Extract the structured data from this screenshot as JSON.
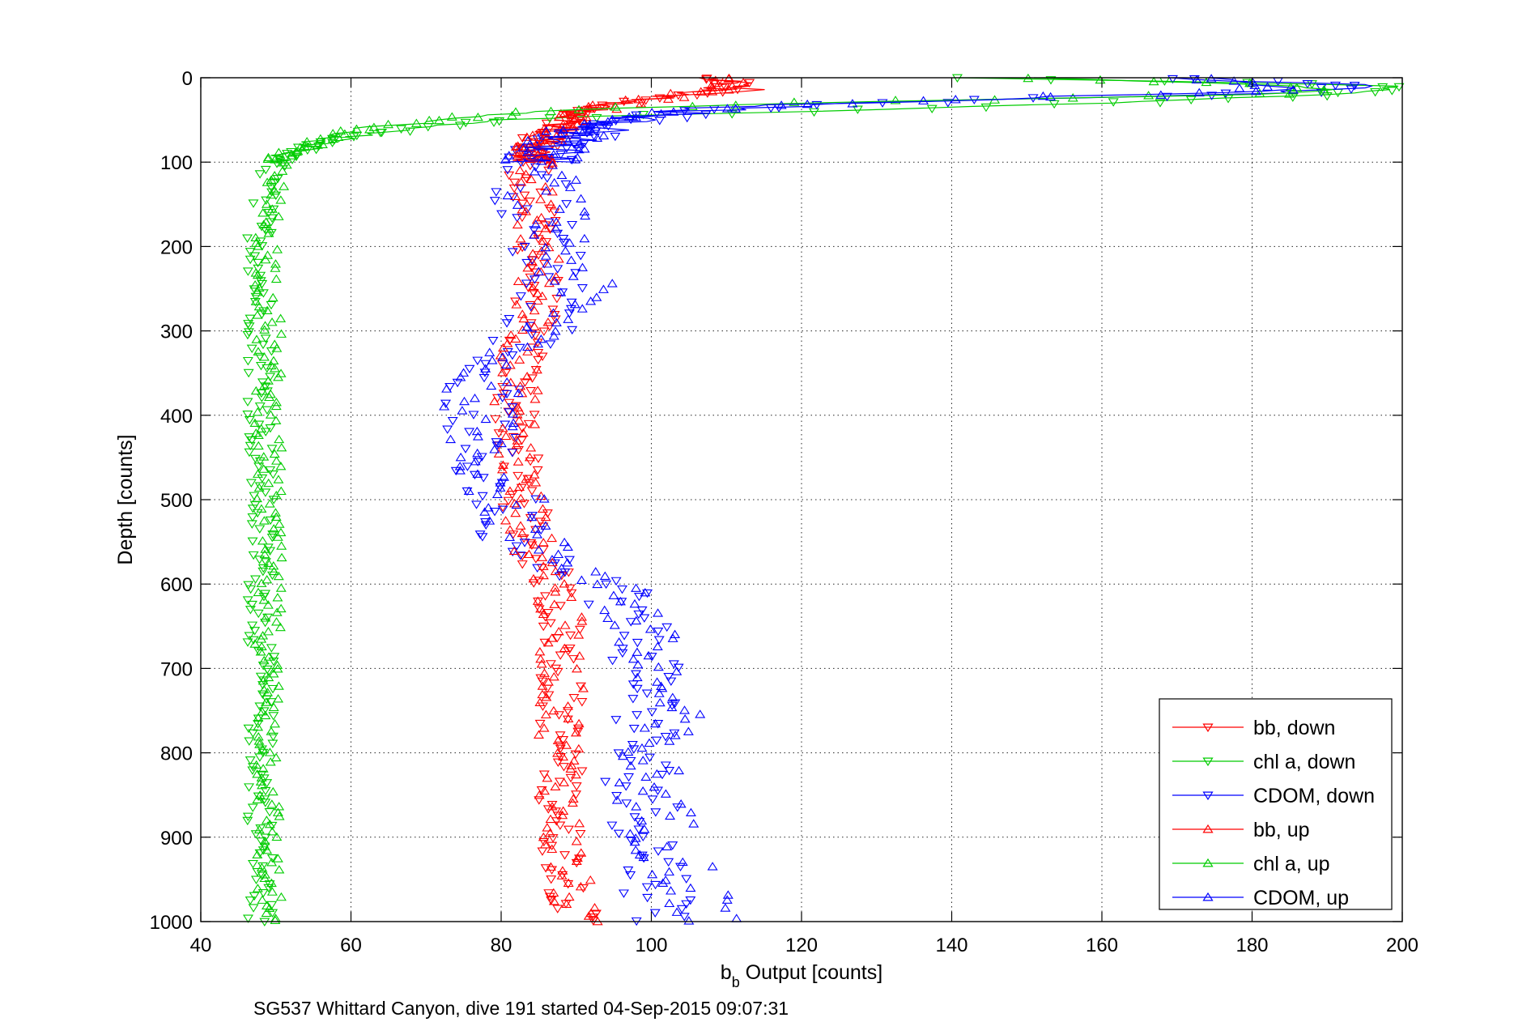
{
  "chart_data": {
    "type": "scatter",
    "title": "",
    "xlabel_main": "b",
    "xlabel_sub": "b",
    "xlabel_rest": " Output [counts]",
    "ylabel": "Depth [counts]",
    "caption": "SG537 Whittard Canyon, dive 191 started 04-Sep-2015 09:07:31",
    "xlim": [
      40,
      200
    ],
    "ylim": [
      0,
      1000
    ],
    "y_reversed": true,
    "x_ticks": [
      40,
      60,
      80,
      100,
      120,
      140,
      160,
      180,
      200
    ],
    "y_ticks": [
      0,
      100,
      200,
      300,
      400,
      500,
      600,
      700,
      800,
      900,
      1000
    ],
    "grid": true,
    "legend_position": "bottom-right",
    "series": [
      {
        "name": "bb, down",
        "color": "#ff0000",
        "marker": "triangle-down",
        "profile": [
          [
            0,
            108
          ],
          [
            5,
            110
          ],
          [
            10,
            112
          ],
          [
            15,
            113
          ],
          [
            20,
            104
          ],
          [
            25,
            100
          ],
          [
            30,
            96
          ],
          [
            35,
            92
          ],
          [
            40,
            90
          ],
          [
            50,
            88
          ],
          [
            60,
            87
          ],
          [
            70,
            86
          ],
          [
            80,
            85
          ],
          [
            90,
            84
          ],
          [
            100,
            84
          ],
          [
            150,
            84
          ],
          [
            200,
            85
          ],
          [
            250,
            85
          ],
          [
            300,
            84
          ],
          [
            350,
            82
          ],
          [
            400,
            82
          ],
          [
            450,
            82
          ],
          [
            500,
            83
          ],
          [
            550,
            84
          ],
          [
            600,
            87
          ],
          [
            650,
            88
          ],
          [
            700,
            88
          ],
          [
            750,
            88
          ],
          [
            800,
            88
          ],
          [
            850,
            88
          ],
          [
            900,
            88
          ],
          [
            950,
            89
          ],
          [
            1000,
            90
          ]
        ]
      },
      {
        "name": "chl a, down",
        "color": "#00cc00",
        "marker": "triangle-down",
        "profile": [
          [
            0,
            140
          ],
          [
            5,
            175
          ],
          [
            10,
            198
          ],
          [
            15,
            198
          ],
          [
            20,
            190
          ],
          [
            25,
            175
          ],
          [
            30,
            160
          ],
          [
            35,
            140
          ],
          [
            40,
            120
          ],
          [
            45,
            95
          ],
          [
            50,
            80
          ],
          [
            60,
            68
          ],
          [
            70,
            60
          ],
          [
            80,
            55
          ],
          [
            90,
            52
          ],
          [
            100,
            50
          ],
          [
            150,
            48
          ],
          [
            200,
            48
          ],
          [
            250,
            48
          ],
          [
            300,
            48
          ],
          [
            350,
            48
          ],
          [
            400,
            48
          ],
          [
            450,
            48
          ],
          [
            500,
            48
          ],
          [
            550,
            48
          ],
          [
            600,
            48
          ],
          [
            650,
            48
          ],
          [
            700,
            48
          ],
          [
            750,
            48
          ],
          [
            800,
            48
          ],
          [
            850,
            48
          ],
          [
            900,
            48
          ],
          [
            950,
            48
          ],
          [
            1000,
            48
          ]
        ]
      },
      {
        "name": "CDOM, down",
        "color": "#0000ff",
        "marker": "triangle-down",
        "profile": [
          [
            0,
            165
          ],
          [
            5,
            185
          ],
          [
            10,
            195
          ],
          [
            15,
            190
          ],
          [
            20,
            175
          ],
          [
            25,
            150
          ],
          [
            30,
            130
          ],
          [
            35,
            115
          ],
          [
            40,
            105
          ],
          [
            50,
            98
          ],
          [
            60,
            93
          ],
          [
            70,
            90
          ],
          [
            80,
            88
          ],
          [
            90,
            86
          ],
          [
            100,
            85
          ],
          [
            150,
            84
          ],
          [
            200,
            86
          ],
          [
            250,
            88
          ],
          [
            300,
            85
          ],
          [
            350,
            78
          ],
          [
            400,
            77
          ],
          [
            450,
            77
          ],
          [
            500,
            80
          ],
          [
            550,
            82
          ],
          [
            600,
            95
          ],
          [
            650,
            98
          ],
          [
            700,
            100
          ],
          [
            750,
            100
          ],
          [
            800,
            98
          ],
          [
            850,
            99
          ],
          [
            900,
            100
          ],
          [
            950,
            101
          ],
          [
            1000,
            102
          ]
        ]
      },
      {
        "name": "bb, up",
        "color": "#ff0000",
        "marker": "triangle-up",
        "profile": [
          [
            0,
            109
          ],
          [
            5,
            110
          ],
          [
            10,
            110
          ],
          [
            15,
            108
          ],
          [
            20,
            104
          ],
          [
            25,
            100
          ],
          [
            30,
            96
          ],
          [
            35,
            93
          ],
          [
            40,
            91
          ],
          [
            50,
            89
          ],
          [
            60,
            88
          ],
          [
            70,
            86
          ],
          [
            80,
            85
          ],
          [
            90,
            84
          ],
          [
            100,
            84
          ],
          [
            150,
            84
          ],
          [
            200,
            85
          ],
          [
            250,
            85
          ],
          [
            300,
            84
          ],
          [
            350,
            82
          ],
          [
            400,
            82
          ],
          [
            450,
            82
          ],
          [
            500,
            83
          ],
          [
            550,
            84
          ],
          [
            600,
            87
          ],
          [
            650,
            88
          ],
          [
            700,
            88
          ],
          [
            750,
            88
          ],
          [
            800,
            88
          ],
          [
            850,
            88
          ],
          [
            900,
            88
          ],
          [
            950,
            89
          ],
          [
            1000,
            90
          ]
        ]
      },
      {
        "name": "chl a, up",
        "color": "#00cc00",
        "marker": "triangle-up",
        "profile": [
          [
            0,
            150
          ],
          [
            5,
            170
          ],
          [
            10,
            185
          ],
          [
            15,
            190
          ],
          [
            20,
            180
          ],
          [
            25,
            150
          ],
          [
            30,
            120
          ],
          [
            35,
            100
          ],
          [
            40,
            85
          ],
          [
            50,
            72
          ],
          [
            60,
            62
          ],
          [
            70,
            57
          ],
          [
            80,
            54
          ],
          [
            90,
            51
          ],
          [
            100,
            50
          ],
          [
            150,
            49
          ],
          [
            200,
            49
          ],
          [
            250,
            49
          ],
          [
            300,
            49
          ],
          [
            350,
            49
          ],
          [
            400,
            49
          ],
          [
            450,
            49
          ],
          [
            500,
            49
          ],
          [
            550,
            49
          ],
          [
            600,
            49
          ],
          [
            650,
            49
          ],
          [
            700,
            49
          ],
          [
            750,
            49
          ],
          [
            800,
            49
          ],
          [
            850,
            49
          ],
          [
            900,
            49
          ],
          [
            950,
            49
          ],
          [
            1000,
            49
          ]
        ]
      },
      {
        "name": "CDOM, up",
        "color": "#0000ff",
        "marker": "triangle-up",
        "profile": [
          [
            0,
            170
          ],
          [
            5,
            180
          ],
          [
            10,
            185
          ],
          [
            15,
            180
          ],
          [
            20,
            165
          ],
          [
            25,
            145
          ],
          [
            30,
            125
          ],
          [
            35,
            110
          ],
          [
            40,
            102
          ],
          [
            50,
            96
          ],
          [
            60,
            92
          ],
          [
            70,
            89
          ],
          [
            80,
            87
          ],
          [
            90,
            86
          ],
          [
            100,
            85
          ],
          [
            150,
            86
          ],
          [
            200,
            88
          ],
          [
            250,
            90
          ],
          [
            300,
            86
          ],
          [
            350,
            78
          ],
          [
            400,
            77
          ],
          [
            450,
            78
          ],
          [
            500,
            81
          ],
          [
            550,
            84
          ],
          [
            600,
            96
          ],
          [
            650,
            98
          ],
          [
            700,
            100
          ],
          [
            750,
            102
          ],
          [
            800,
            99
          ],
          [
            850,
            100
          ],
          [
            900,
            102
          ],
          [
            950,
            105
          ],
          [
            1000,
            108
          ]
        ]
      }
    ]
  }
}
